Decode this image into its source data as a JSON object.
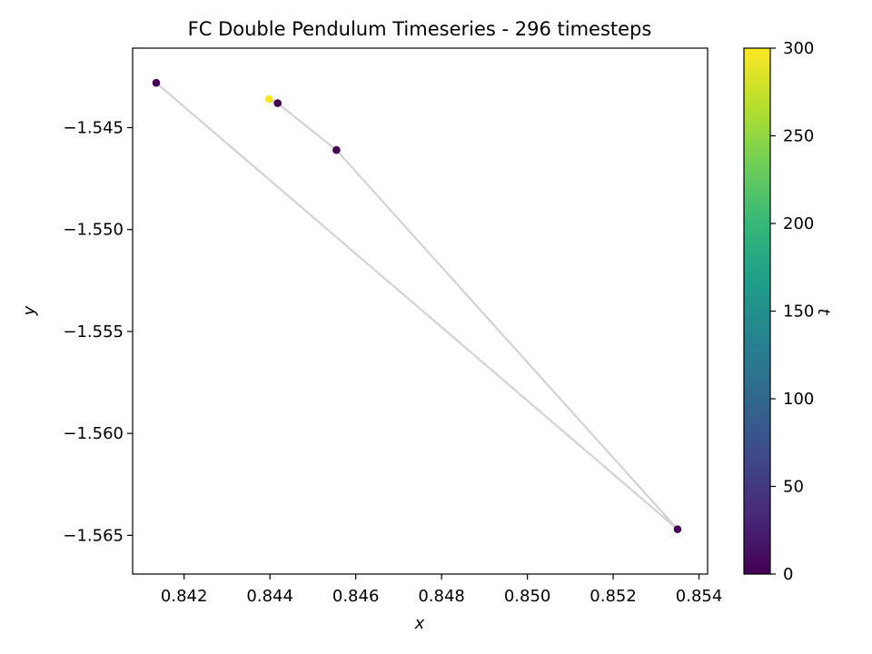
{
  "chart_data": {
    "type": "scatter",
    "title": "FC Double Pendulum Timeseries - 296 timesteps",
    "xlabel": "x",
    "ylabel": "y",
    "xlim": [
      0.8408,
      0.8542
    ],
    "ylim": [
      -1.5669,
      -1.5411
    ],
    "x_ticks": [
      0.842,
      0.844,
      0.846,
      0.848,
      0.85,
      0.852,
      0.854
    ],
    "x_tick_labels": [
      "0.842",
      "0.844",
      "0.846",
      "0.848",
      "0.850",
      "0.852",
      "0.854"
    ],
    "y_ticks": [
      -1.545,
      -1.55,
      -1.555,
      -1.56,
      -1.565
    ],
    "y_tick_labels": [
      "−1.545",
      "−1.550",
      "−1.555",
      "−1.560",
      "−1.565"
    ],
    "grid": false,
    "path_color": "#d3d3d3",
    "points": [
      {
        "t": 0,
        "x": 0.84135,
        "y": -1.5428
      },
      {
        "t": 2,
        "x": 0.8535,
        "y": -1.5647
      },
      {
        "t": 4,
        "x": 0.84555,
        "y": -1.5461
      },
      {
        "t": 6,
        "x": 0.84418,
        "y": -1.5438
      },
      {
        "t": 296,
        "x": 0.84398,
        "y": -1.5436
      }
    ],
    "colorbar": {
      "label": "t",
      "colormap": "viridis",
      "range": [
        0,
        300
      ],
      "ticks": [
        0,
        50,
        100,
        150,
        200,
        250,
        300
      ],
      "tick_labels": [
        "0",
        "50",
        "100",
        "150",
        "200",
        "250",
        "300"
      ],
      "colors": [
        "#440154",
        "#482878",
        "#3e4989",
        "#31688e",
        "#26828e",
        "#1f9e89",
        "#35b779",
        "#6ece58",
        "#b5de2b",
        "#fde725"
      ]
    }
  }
}
